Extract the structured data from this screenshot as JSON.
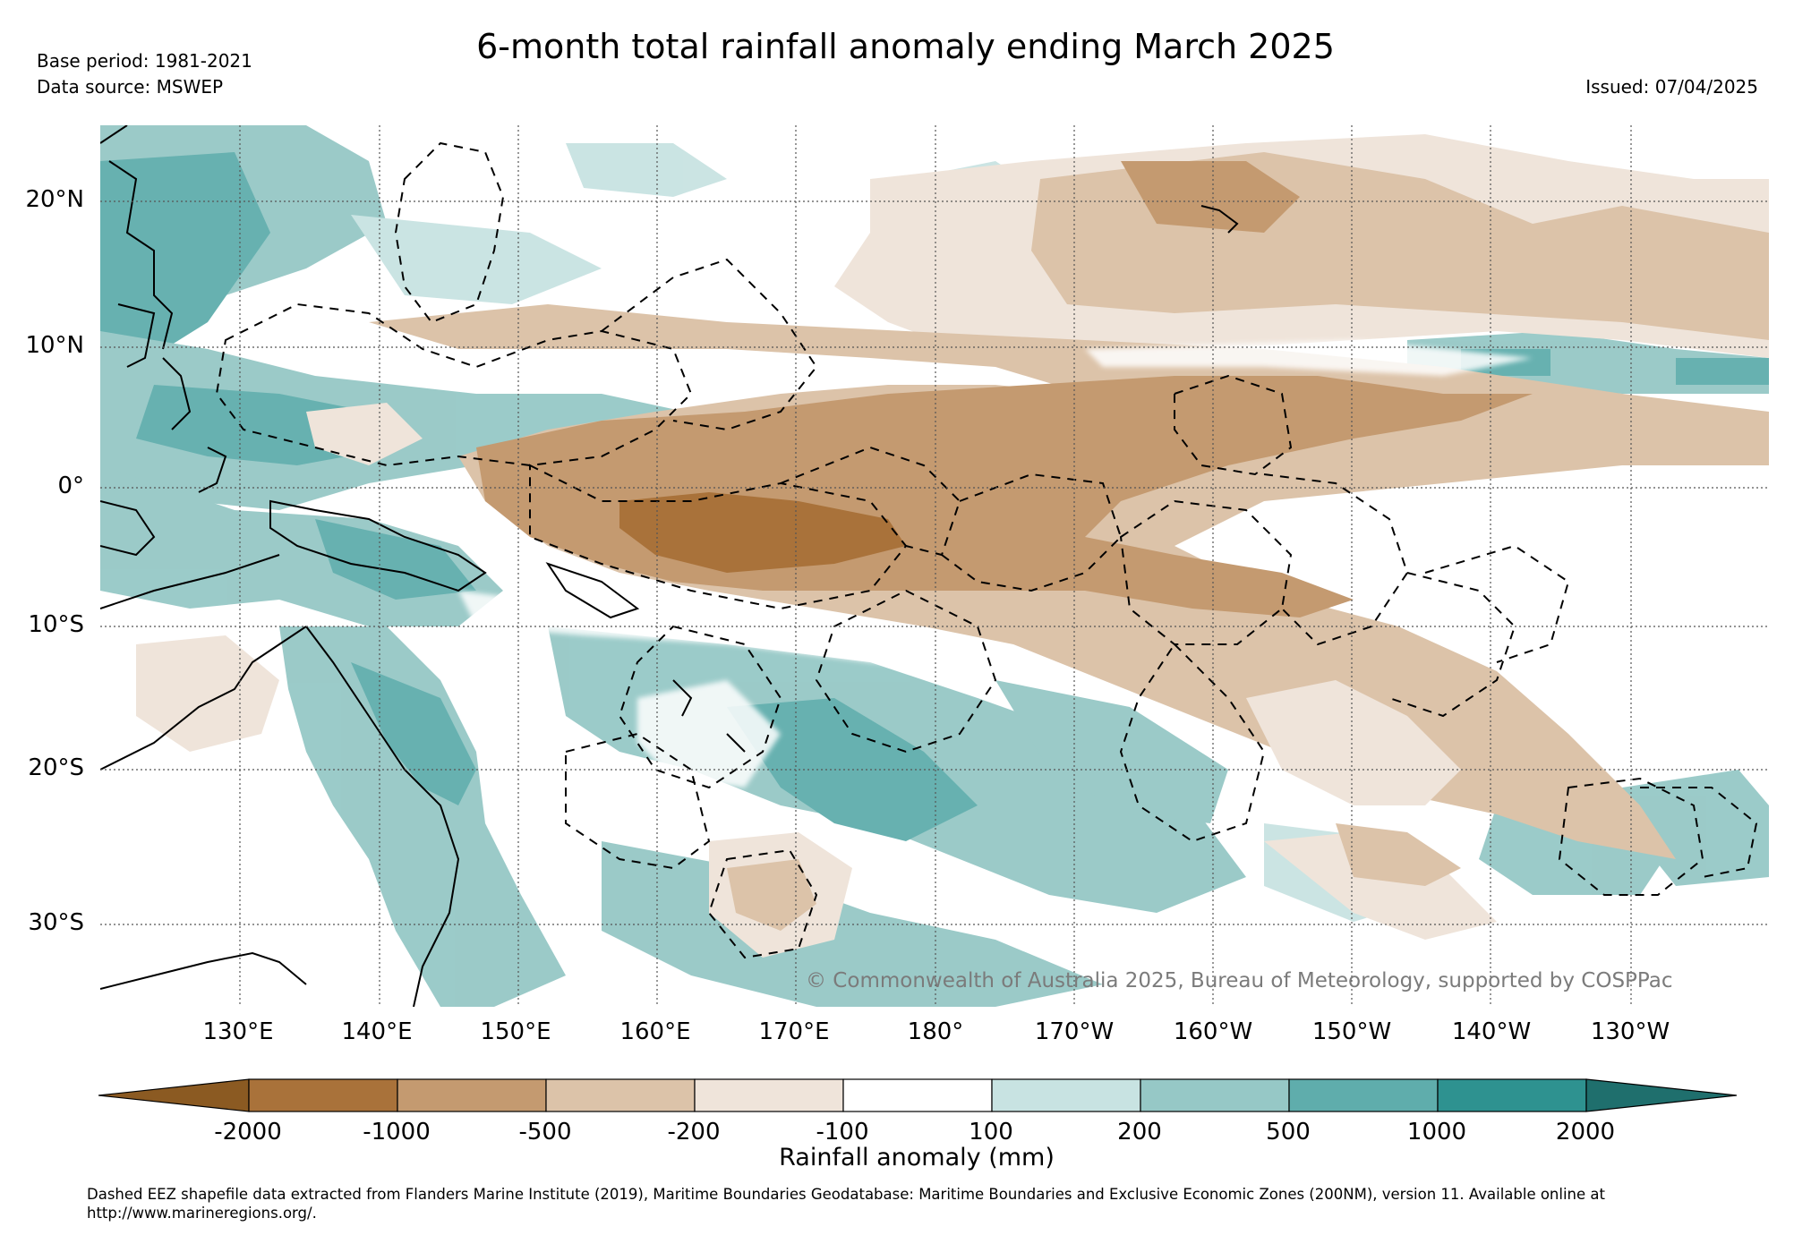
{
  "header": {
    "title": "6-month total rainfall anomaly ending March 2025",
    "base_period": "Base period: 1981-2021",
    "data_source": "Data source: MSWEP",
    "issued": "Issued: 07/04/2025"
  },
  "map": {
    "lat_labels": [
      "20°N",
      "10°N",
      "0°",
      "10°S",
      "20°S",
      "30°S"
    ],
    "lon_labels": [
      "130°E",
      "140°E",
      "150°E",
      "160°E",
      "170°E",
      "180°",
      "170°W",
      "160°W",
      "150°W",
      "140°W",
      "130°W"
    ],
    "copyright": "© Commonwealth of Australia 2025, Bureau of Meteorology, supported by COSPPac"
  },
  "legend": {
    "label": "Rainfall anomaly (mm)",
    "ticks": [
      "-2000",
      "-1000",
      "-500",
      "-200",
      "-100",
      "100",
      "200",
      "500",
      "1000",
      "2000"
    ],
    "colors": [
      "#8b5a22",
      "#a9723a",
      "#c49a70",
      "#dcc3a9",
      "#efe4da",
      "#ffffff",
      "#c8e3e2",
      "#96c8c6",
      "#5fadac",
      "#2e9290",
      "#1f6f6d"
    ]
  },
  "footnote": "Dashed EEZ shapefile data extracted from Flanders Marine Institute (2019), Maritime Boundaries Geodatabase: Maritime Boundaries and Exclusive Economic Zones (200NM), version 11. Available online at http://www.marineregions.org/."
}
